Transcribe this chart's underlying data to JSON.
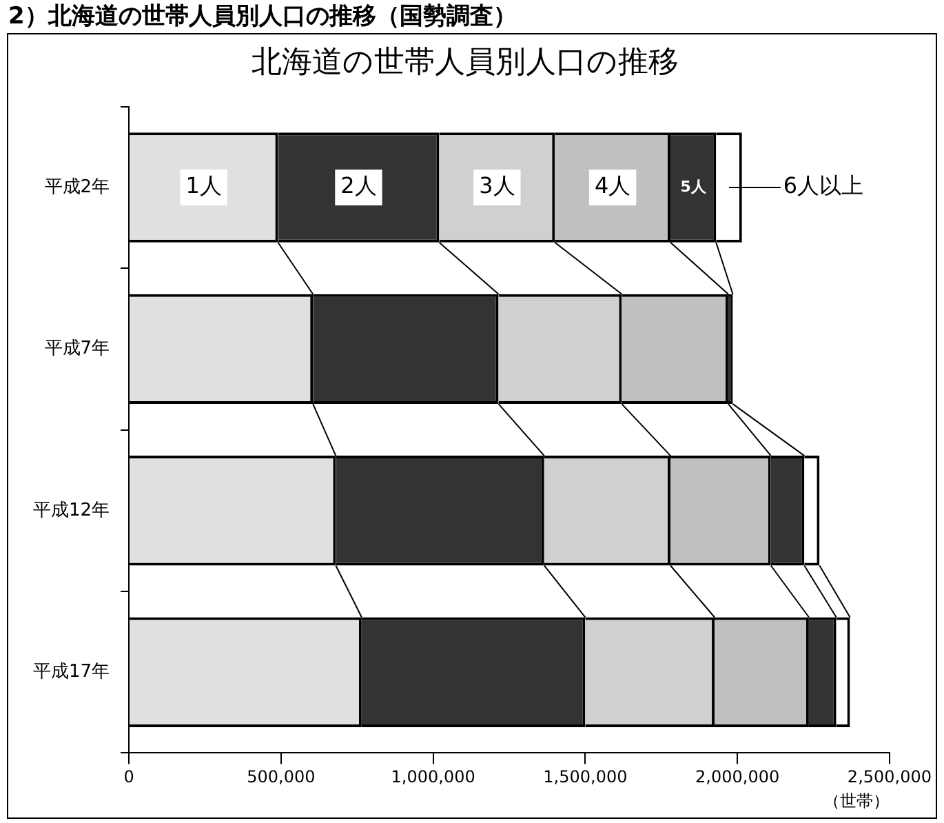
{
  "chart_data": {
    "type": "bar",
    "orientation": "horizontal",
    "stacked": true,
    "title": "北海道の世帯人員別人口の推移",
    "annotations": [
      "2）北海道の世帯人員別人口の推移（国勢調査）"
    ],
    "xlabel": "（世帯）",
    "categories": [
      "平成2年",
      "平成7年",
      "平成12年",
      "平成17年"
    ],
    "series": [
      {
        "name": "1人",
        "color": "#e0e0e0",
        "values": [
          490000,
          605000,
          680000,
          765000
        ]
      },
      {
        "name": "2人",
        "color": "#333333",
        "values": [
          530000,
          610000,
          685000,
          735000
        ]
      },
      {
        "name": "3人",
        "color": "#d0d0d0",
        "values": [
          380000,
          405000,
          415000,
          425000
        ]
      },
      {
        "name": "4人",
        "color": "#c0c0c0",
        "values": [
          380000,
          350000,
          330000,
          310000
        ]
      },
      {
        "name": "5人",
        "color": "#333333",
        "values": [
          150000,
          15000,
          110000,
          90000
        ]
      },
      {
        "name": "6人以上",
        "color": "#ffffff",
        "values": [
          85000,
          null,
          50000,
          45000
        ]
      }
    ],
    "xlim": [
      0,
      2500000
    ],
    "xticks": [
      0,
      {
        "value": 500000,
        "label": "500,000"
      },
      {
        "value": 1000000,
        "label": "1,000,000"
      },
      {
        "value": 1500000,
        "label": "1,500,000"
      },
      {
        "value": 2000000,
        "label": "2,000,000"
      },
      {
        "value": 2500000,
        "label": "2,500,000"
      }
    ],
    "grid": false,
    "legend": "top"
  }
}
